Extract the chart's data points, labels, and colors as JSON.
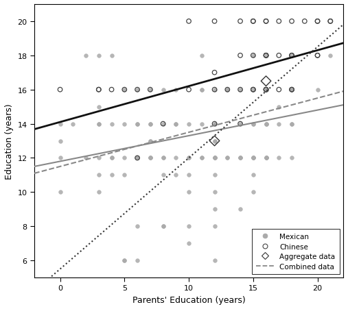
{
  "title": "",
  "xlabel": "Parents' Education (years)",
  "ylabel": "Education (years)",
  "xlim": [
    -2,
    22
  ],
  "ylim": [
    5,
    21
  ],
  "xticks": [
    0,
    5,
    10,
    15,
    20
  ],
  "yticks": [
    6,
    8,
    10,
    12,
    14,
    16,
    18,
    20
  ],
  "mexican_color": "#aaaaaa",
  "chinese_color": "#444444",
  "aggregate_color": "#555555",
  "combined_dash_color": "#888888",
  "mexican_line_color": "#888888",
  "chinese_line_color": "#111111",
  "mexican_scatter": {
    "x": [
      0,
      0,
      0,
      0,
      1,
      2,
      2,
      3,
      3,
      3,
      3,
      3,
      3,
      3,
      4,
      4,
      4,
      4,
      4,
      5,
      5,
      5,
      5,
      5,
      5,
      6,
      6,
      6,
      6,
      6,
      6,
      6,
      6,
      6,
      7,
      7,
      7,
      7,
      7,
      7,
      7,
      7,
      8,
      8,
      8,
      8,
      8,
      8,
      8,
      9,
      9,
      9,
      9,
      9,
      10,
      10,
      10,
      10,
      10,
      10,
      10,
      11,
      11,
      11,
      11,
      11,
      11,
      12,
      12,
      12,
      12,
      12,
      12,
      12,
      12,
      12,
      12,
      12,
      12,
      12,
      12,
      13,
      13,
      13,
      13,
      14,
      14,
      14,
      14,
      14,
      14,
      15,
      15,
      15,
      15,
      15,
      15,
      15,
      15,
      15,
      15,
      16,
      16,
      16,
      16,
      16,
      16,
      16,
      16,
      16,
      16,
      17,
      17,
      17,
      18,
      18,
      18,
      18,
      18,
      18,
      20,
      21
    ],
    "y": [
      10,
      12,
      13,
      14,
      14,
      12,
      18,
      10,
      11,
      12,
      14,
      14,
      15,
      18,
      11,
      12,
      12,
      14,
      18,
      6,
      6,
      11,
      12,
      14,
      16,
      6,
      8,
      12,
      12,
      12,
      12,
      14,
      14,
      16,
      12,
      12,
      12,
      13,
      13,
      14,
      14,
      16,
      8,
      8,
      11,
      12,
      12,
      14,
      16,
      11,
      12,
      14,
      14,
      16,
      7,
      8,
      10,
      11,
      12,
      12,
      14,
      12,
      12,
      14,
      16,
      16,
      18,
      6,
      8,
      9,
      10,
      11,
      12,
      12,
      12,
      12,
      13,
      13,
      14,
      14,
      16,
      12,
      12,
      16,
      16,
      9,
      12,
      12,
      12,
      14,
      16,
      10,
      11,
      12,
      12,
      12,
      12,
      14,
      14,
      16,
      18,
      12,
      12,
      12,
      12,
      14,
      14,
      14,
      16,
      16,
      18,
      12,
      14,
      15,
      12,
      14,
      14,
      16,
      16,
      18,
      16,
      18
    ]
  },
  "chinese_scatter": {
    "x": [
      0,
      3,
      3,
      4,
      5,
      6,
      6,
      7,
      8,
      10,
      10,
      12,
      12,
      12,
      12,
      13,
      14,
      14,
      14,
      14,
      15,
      15,
      15,
      15,
      15,
      16,
      16,
      16,
      16,
      16,
      16,
      16,
      16,
      17,
      17,
      17,
      18,
      18,
      18,
      18,
      18,
      19,
      20,
      20,
      20,
      20,
      21,
      21
    ],
    "y": [
      16,
      16,
      16,
      16,
      16,
      12,
      16,
      16,
      14,
      16,
      20,
      14,
      16,
      17,
      20,
      16,
      14,
      16,
      18,
      20,
      16,
      16,
      18,
      20,
      20,
      16,
      16,
      16,
      18,
      18,
      18,
      20,
      20,
      16,
      18,
      20,
      16,
      16,
      18,
      18,
      20,
      20,
      18,
      18,
      20,
      20,
      20,
      20
    ]
  },
  "aggregate_points": {
    "x": [
      12,
      16
    ],
    "y": [
      13,
      16.5
    ]
  },
  "mexican_line": {
    "x0": -2,
    "x1": 22,
    "slope": 0.15,
    "intercept": 11.8
  },
  "chinese_line": {
    "x0": -2,
    "x1": 22,
    "slope": 0.21,
    "intercept": 14.1
  },
  "aggregate_line": {
    "x0": -2,
    "x1": 22,
    "slope": 0.65,
    "intercept": 5.5
  },
  "combined_line": {
    "x0": -2,
    "x1": 22,
    "slope": 0.2,
    "intercept": 11.5
  },
  "legend_items": [
    "Mexican",
    "Chinese",
    "Aggregate data",
    "Combined data"
  ],
  "background_color": "#ffffff",
  "grid": false
}
